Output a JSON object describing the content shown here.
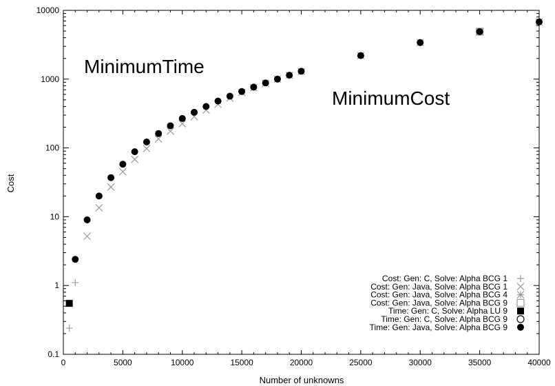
{
  "chart_data": {
    "type": "scatter",
    "xlabel": "Number of unknowns",
    "ylabel": "Cost",
    "xlim": [
      0,
      40000
    ],
    "ylim": [
      0.1,
      10000
    ],
    "yscale": "log",
    "x_ticks": [
      "0",
      "5000",
      "10000",
      "15000",
      "20000",
      "25000",
      "30000",
      "35000",
      "40000"
    ],
    "y_ticks": [
      "0.1",
      "1",
      "10",
      "100",
      "1000",
      "10000"
    ],
    "grid": false,
    "legend_position": "bottom-right",
    "annotations": [
      "MinimumTime",
      "MinimumCost"
    ],
    "series": [
      {
        "name": "Cost: Gen: C, Solve: Alpha BCG 1",
        "marker": "plus",
        "color": "#9a9a9a",
        "points": [
          [
            500,
            0.24
          ],
          [
            1000,
            1.1
          ]
        ]
      },
      {
        "name": "Cost: Gen: Java, Solve: Alpha BCG 1",
        "marker": "cross",
        "color": "#9a9a9a",
        "points": [
          [
            2000,
            5.2
          ],
          [
            3000,
            13.5
          ],
          [
            4000,
            27
          ],
          [
            5000,
            45
          ],
          [
            6000,
            68
          ],
          [
            7000,
            98
          ],
          [
            8000,
            135
          ],
          [
            9000,
            175
          ],
          [
            10000,
            225
          ],
          [
            11000,
            285
          ],
          [
            12000,
            355
          ],
          [
            13000,
            430
          ],
          [
            14000,
            530
          ],
          [
            15000,
            640
          ],
          [
            16000,
            750
          ],
          [
            17000,
            870
          ],
          [
            18000,
            1000
          ],
          [
            19000,
            1140
          ],
          [
            20000,
            1290
          ]
        ]
      },
      {
        "name": "Cost: Gen: Java, Solve: Alpha BCG 4",
        "marker": "asterisk",
        "color": "#9a9a9a",
        "points": [
          [
            25000,
            2200
          ],
          [
            30000,
            3400
          ],
          [
            35000,
            4900
          ],
          [
            40000,
            6800
          ]
        ]
      },
      {
        "name": "Cost: Gen: Java, Solve: Alpha BCG 9",
        "marker": "square-open",
        "color": "#9a9a9a",
        "points": [
          [
            35000,
            4900
          ]
        ]
      },
      {
        "name": "Time: Gen: C, Solve: Alpha LU 9",
        "marker": "square-filled",
        "color": "#000000",
        "points": [
          [
            500,
            0.55
          ]
        ]
      },
      {
        "name": "Time: Gen: C, Solve: Alpha BCG 9",
        "marker": "circle-open",
        "color": "#000000",
        "points": []
      },
      {
        "name": "Time: Gen: Java, Solve: Alpha BCG 9",
        "marker": "circle-filled",
        "color": "#000000",
        "points": [
          [
            1000,
            2.4
          ],
          [
            2000,
            9
          ],
          [
            3000,
            20
          ],
          [
            4000,
            37
          ],
          [
            5000,
            58
          ],
          [
            6000,
            88
          ],
          [
            7000,
            122
          ],
          [
            8000,
            162
          ],
          [
            9000,
            210
          ],
          [
            10000,
            268
          ],
          [
            11000,
            330
          ],
          [
            12000,
            400
          ],
          [
            13000,
            480
          ],
          [
            14000,
            565
          ],
          [
            15000,
            660
          ],
          [
            16000,
            765
          ],
          [
            17000,
            880
          ],
          [
            18000,
            1000
          ],
          [
            19000,
            1140
          ],
          [
            20000,
            1300
          ],
          [
            25000,
            2200
          ],
          [
            30000,
            3400
          ],
          [
            35000,
            4900
          ],
          [
            40000,
            6800
          ]
        ]
      }
    ]
  }
}
